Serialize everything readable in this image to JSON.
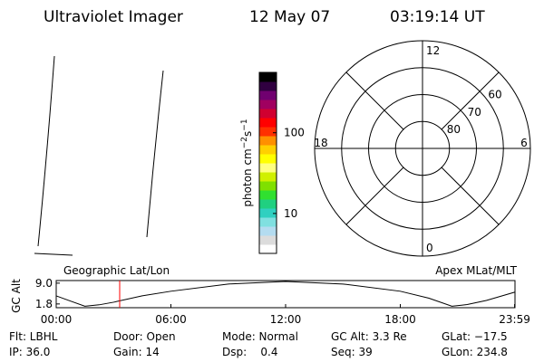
{
  "header": {
    "title": "Ultraviolet Imager",
    "date": "12 May 07",
    "time": "03:19:14 UT"
  },
  "colorbar": {
    "label_parts": [
      "photon cm",
      "−2",
      "s",
      "−1"
    ],
    "log": true,
    "ylim": [
      3.2,
      560
    ],
    "yticks": [
      10,
      100
    ],
    "colors": [
      "#ffffff",
      "#dcdcdc",
      "#b4dcf0",
      "#80e0e0",
      "#30d0c0",
      "#20d080",
      "#30e030",
      "#80e000",
      "#d0f000",
      "#ffff80",
      "#ffff00",
      "#ffd000",
      "#ff9000",
      "#ff3000",
      "#ff0000",
      "#d00030",
      "#a00060",
      "#700070",
      "#300040",
      "#000000"
    ]
  },
  "polar": {
    "rlim": [
      90,
      50
    ],
    "rticks": [
      60,
      70,
      80
    ],
    "mlt_ticks": [
      12,
      6,
      0,
      18
    ]
  },
  "chart_data": {
    "type": "line",
    "ylabel": "GC Alt",
    "left_label": "Geographic Lat/Lon",
    "right_label": "Apex MLat/MLT",
    "x": [
      0,
      0.75,
      1.5,
      2.25,
      3,
      4.5,
      6,
      9,
      12,
      15,
      18,
      19.5,
      20.7,
      21.5,
      22.5,
      24
    ],
    "values": [
      4.6,
      2.8,
      1.0,
      1.5,
      2.4,
      4.6,
      6.2,
      8.7,
      9.6,
      8.7,
      6.2,
      3.8,
      1.0,
      1.6,
      3.0,
      5.9
    ],
    "color": "#000000",
    "marker": {
      "x": 3.32,
      "color": "#ff0000"
    },
    "xlim": [
      0,
      24
    ],
    "ylim": [
      0.5,
      9.9
    ],
    "xticks": [
      {
        "value": 0,
        "label": "00:00"
      },
      {
        "value": 6,
        "label": "06:00"
      },
      {
        "value": 12,
        "label": "12:00"
      },
      {
        "value": 18,
        "label": "18:00"
      },
      {
        "value": 23.98,
        "label": "23:59"
      }
    ],
    "yticks": [
      {
        "value": 9.0,
        "label": "9.0"
      },
      {
        "value": 1.8,
        "label": "1.8"
      }
    ]
  },
  "info": {
    "rows": [
      [
        "Flt: LBHL",
        "Door: Open",
        "Mode: Normal",
        "GC Alt: 3.3 Re",
        "GLat: −17.5"
      ],
      [
        "IP: 36.0",
        "Gain: 14",
        "Dsp:    0.4",
        "Seq: 39",
        "GLon: 234.8"
      ]
    ]
  }
}
